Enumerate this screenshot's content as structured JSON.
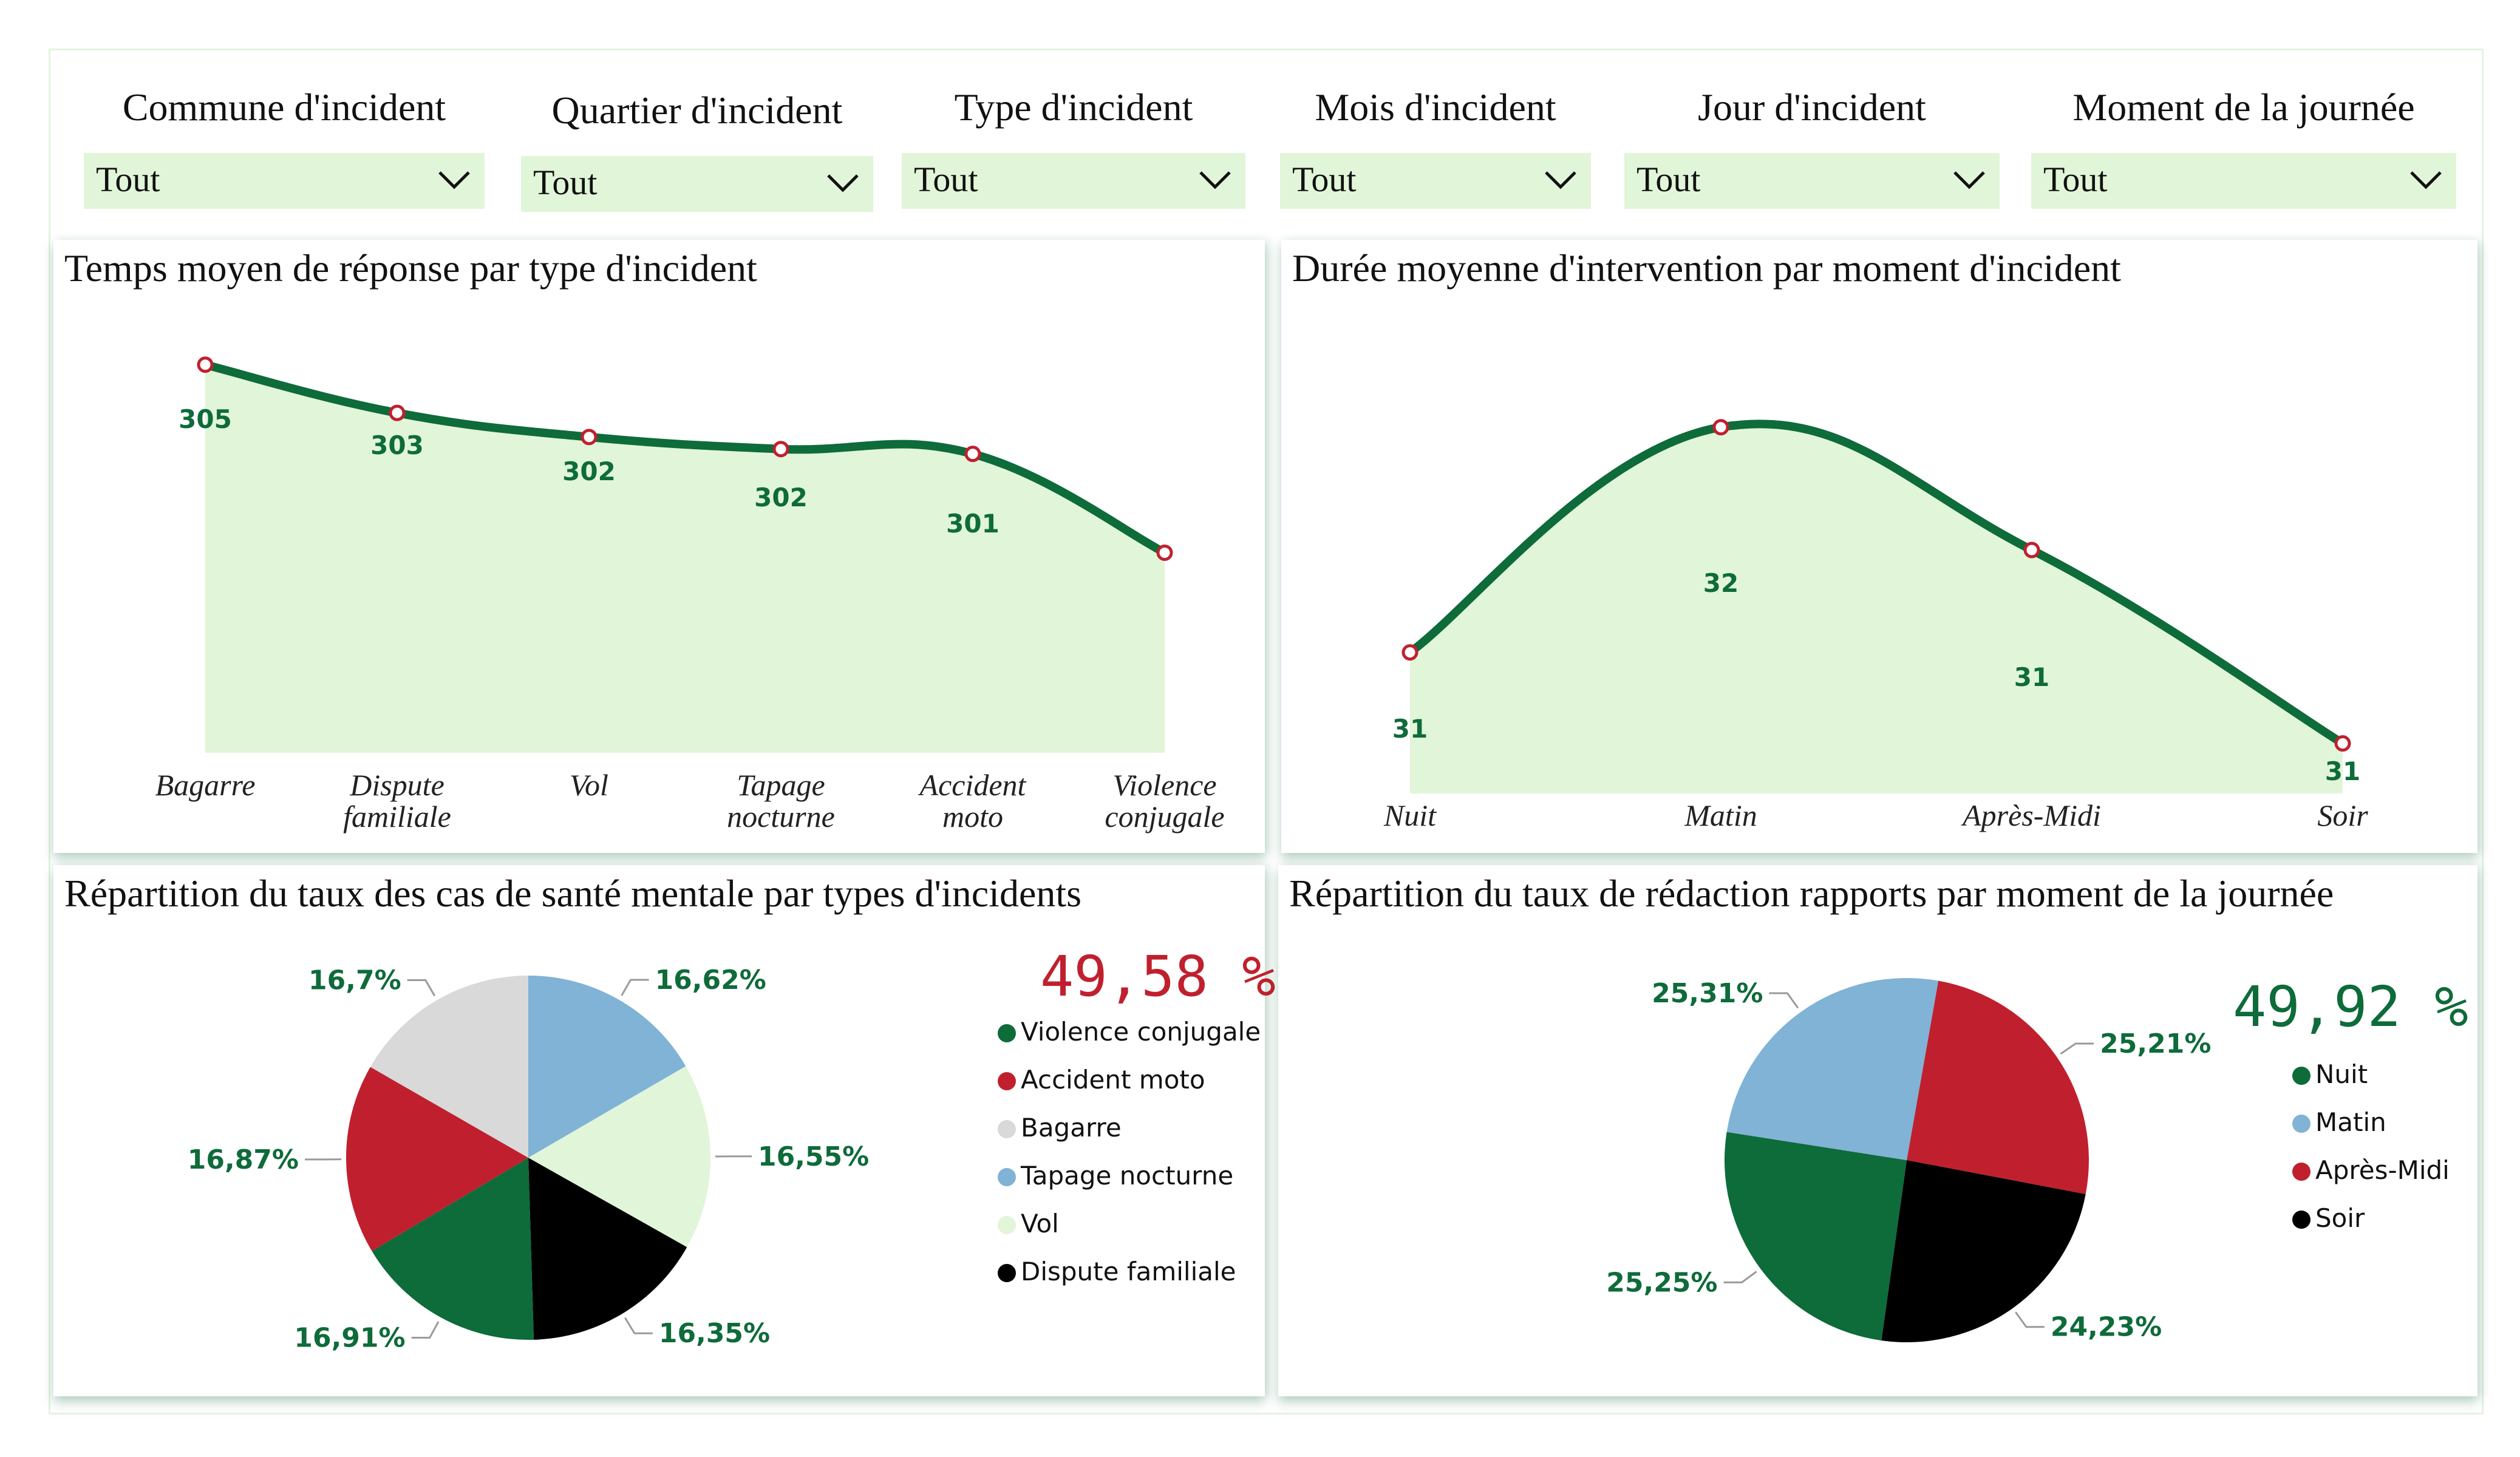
{
  "filters": [
    {
      "label": "Commune d'incident",
      "value": "Tout"
    },
    {
      "label": "Quartier d'incident",
      "value": "Tout"
    },
    {
      "label": "Type d'incident",
      "value": "Tout"
    },
    {
      "label": "Mois d'incident",
      "value": "Tout"
    },
    {
      "label": "Jour d'incident",
      "value": "Tout"
    },
    {
      "label": "Moment de la journée",
      "value": "Tout"
    }
  ],
  "colors": {
    "line": "#0e6b3a",
    "area": "#e1f5d9",
    "marker": "#c0202e",
    "kpi_red": "#c0202e",
    "kpi_green": "#0e6b3a"
  },
  "panels": {
    "response": {
      "title": "Temps moyen de réponse par type d'incident"
    },
    "duration": {
      "title": "Durée moyenne d'intervention par moment d'incident"
    },
    "mental": {
      "title": "Répartition du taux des cas de santé mentale par types d'incidents",
      "kpi": "49,58 %"
    },
    "reports": {
      "title": "Répartition du taux de rédaction rapports par moment de la journée",
      "kpi": "49,92 %"
    }
  },
  "chart_data": [
    {
      "type": "area",
      "title": "Temps moyen de réponse par type d'incident",
      "categories": [
        "Bagarre",
        "Dispute familiale",
        "Vol",
        "Tapage nocturne",
        "Accident moto",
        "Violence conjugale"
      ],
      "values": [
        305.1,
        303.1,
        302.1,
        301.6,
        301.4,
        297.3
      ],
      "data_labels": [
        "305",
        "303",
        "302",
        "302",
        "301",
        ""
      ],
      "ylim": [
        289,
        306
      ]
    },
    {
      "type": "area",
      "title": "Durée moyenne d'intervention par moment d'incident",
      "categories": [
        "Nuit",
        "Matin",
        "Après-Midi",
        "Soir"
      ],
      "values": [
        31.0,
        31.99,
        31.45,
        30.6
      ],
      "data_labels": [
        "31",
        "32",
        "31",
        "31"
      ],
      "ylim": [
        30.38,
        32.2
      ]
    },
    {
      "type": "pie",
      "title": "Répartition du taux des cas de santé mentale par types d'incidents",
      "slices": [
        {
          "label": "Tapage nocturne",
          "value": 16.62,
          "display": "16,62%",
          "color": "#80b3d6"
        },
        {
          "label": "Vol",
          "value": 16.55,
          "display": "16,55%",
          "color": "#e1f5d9"
        },
        {
          "label": "Dispute familiale",
          "value": 16.35,
          "display": "16,35%",
          "color": "#000000"
        },
        {
          "label": "Violence conjugale",
          "value": 16.91,
          "display": "16,91%",
          "color": "#0e6b3a"
        },
        {
          "label": "Accident moto",
          "value": 16.87,
          "display": "16,87%",
          "color": "#c0202e"
        },
        {
          "label": "Bagarre",
          "value": 16.7,
          "display": "16,7%",
          "color": "#d9d9d9"
        }
      ],
      "legend": [
        {
          "label": "Violence conjugale",
          "color": "#0e6b3a"
        },
        {
          "label": "Accident moto",
          "color": "#c0202e"
        },
        {
          "label": "Bagarre",
          "color": "#d9d9d9"
        },
        {
          "label": "Tapage nocturne",
          "color": "#80b3d6"
        },
        {
          "label": "Vol",
          "color": "#e1f5d9"
        },
        {
          "label": "Dispute familiale",
          "color": "#000000"
        }
      ]
    },
    {
      "type": "pie",
      "title": "Répartition du taux de rédaction rapports par moment de la journée",
      "slices": [
        {
          "label": "Après-Midi",
          "value": 25.21,
          "display": "25,21%",
          "color": "#c0202e"
        },
        {
          "label": "Soir",
          "value": 24.23,
          "display": "24,23%",
          "color": "#000000"
        },
        {
          "label": "Nuit",
          "value": 25.25,
          "display": "25,25%",
          "color": "#0e6b3a"
        },
        {
          "label": "Matin",
          "value": 25.31,
          "display": "25,31%",
          "color": "#80b3d6"
        }
      ],
      "legend": [
        {
          "label": "Nuit",
          "color": "#0e6b3a"
        },
        {
          "label": "Matin",
          "color": "#80b3d6"
        },
        {
          "label": "Après-Midi",
          "color": "#c0202e"
        },
        {
          "label": "Soir",
          "color": "#000000"
        }
      ]
    }
  ]
}
